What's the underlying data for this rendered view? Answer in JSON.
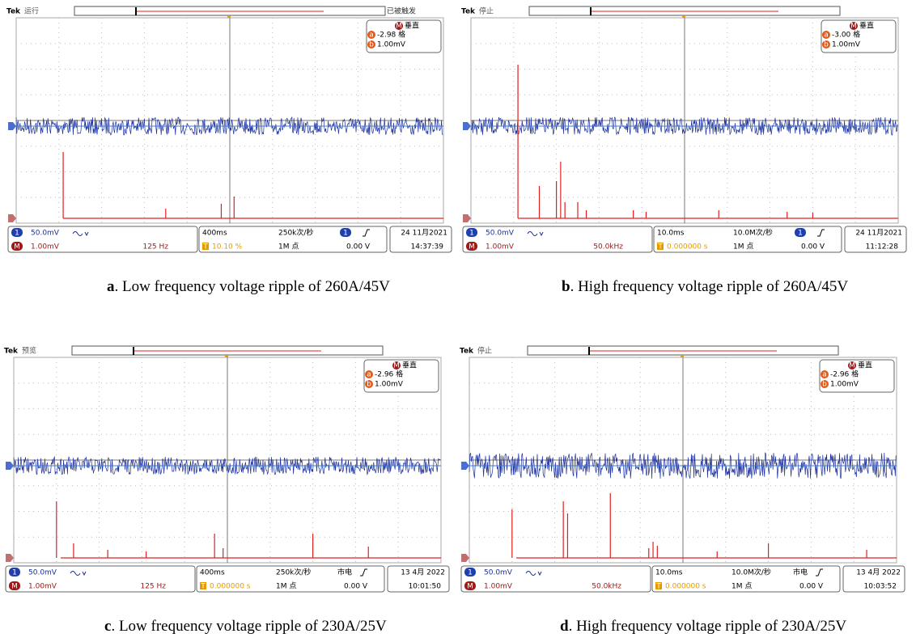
{
  "icons": {
    "brand": "Tek",
    "channel": "1",
    "math": "M",
    "cursor_a": "a",
    "cursor_b": "b",
    "trigger_icon": "T"
  },
  "panels": [
    {
      "status": "运行",
      "trigger_state": "已被触发",
      "vertical_title": "垂直",
      "cursor_a": "-2.98 格",
      "cursor_b": "1.00mV",
      "ch1_scale": "50.0mV",
      "math_scale": "1.00mV",
      "math_span": "125 Hz",
      "timebase": "400ms",
      "sample_rate": "250k次/秒",
      "record_length": "1M 点",
      "trigger_level": "0.00 V",
      "position": "10.10 %",
      "date": "24 11月2021",
      "time": "14:37:39",
      "caption_label": "a",
      "caption": ". Low frequency voltage ripple of 260A/45V"
    },
    {
      "status": "停止",
      "vertical_title": "垂直",
      "cursor_a": "-3.00 格",
      "cursor_b": "1.00mV",
      "ch1_scale": "50.0mV",
      "math_scale": "1.00mV",
      "math_span": "50.0kHz",
      "timebase": "10.0ms",
      "sample_rate": "10.0M次/秒",
      "record_length": "1M 点",
      "trigger_level": "0.00 V",
      "position": "0.000000 s",
      "date": "24 11月2021",
      "time": "11:12:28",
      "caption_label": "b",
      "caption": ". High frequency voltage ripple of 260A/45V"
    },
    {
      "status": "预览",
      "vertical_title": "垂直",
      "cursor_a": "-2.96 格",
      "cursor_b": "1.00mV",
      "ch1_scale": "50.0mV",
      "math_scale": "1.00mV",
      "math_span": "125 Hz",
      "timebase": "400ms",
      "sample_rate": "250k次/秒",
      "record_length": "1M 点",
      "trigger_source": "市电",
      "trigger_level": "0.00 V",
      "position": "0.000000 s",
      "date": "13 4月 2022",
      "time": "10:01:50",
      "caption_label": "c",
      "caption": ". Low frequency voltage ripple of 230A/25V"
    },
    {
      "status": "停止",
      "vertical_title": "垂直",
      "cursor_a": "-2.96 格",
      "cursor_b": "1.00mV",
      "ch1_scale": "50.0mV",
      "math_scale": "1.00mV",
      "math_span": "50.0kHz",
      "timebase": "10.0ms",
      "sample_rate": "10.0M次/秒",
      "record_length": "1M 点",
      "trigger_source": "市电",
      "trigger_level": "0.00 V",
      "position": "0.000000 s",
      "date": "13 4月 2022",
      "time": "10:03:52",
      "caption_label": "d",
      "caption": ". High frequency voltage ripple of 230A/25V"
    }
  ]
}
